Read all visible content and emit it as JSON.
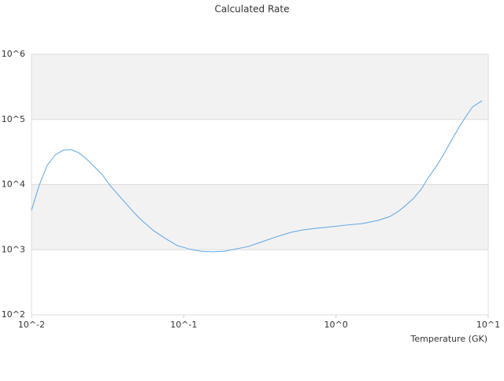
{
  "chart_data": {
    "type": "line",
    "title": "Calculated Rate",
    "x_label": "Temperature (GK)",
    "xscale": "log",
    "yscale": "log",
    "grid": true,
    "color": "#5aa5e8",
    "xlim": [
      0.01,
      10
    ],
    "ylim": [
      100,
      1000000
    ],
    "xticks": [
      {
        "value": 0.01,
        "label": "10^-2"
      },
      {
        "value": 0.1,
        "label": "10^-1"
      },
      {
        "value": 1,
        "label": "10^0"
      },
      {
        "value": 10,
        "label": "10^1"
      }
    ],
    "yticks": [
      {
        "value": 100,
        "label": "10^2"
      },
      {
        "value": 1000,
        "label": "10^3"
      },
      {
        "value": 10000,
        "label": "10^4"
      },
      {
        "value": 100000,
        "label": "10^5"
      },
      {
        "value": 1000000,
        "label": "10^6"
      }
    ],
    "x": [
      0.01,
      0.01127,
      0.01269,
      0.01429,
      0.0161,
      0.01815,
      0.0204,
      0.023,
      0.0259,
      0.0292,
      0.0329,
      0.0394,
      0.0471,
      0.053,
      0.0634,
      0.0757,
      0.0906,
      0.108,
      0.129,
      0.155,
      0.185,
      0.221,
      0.265,
      0.316,
      0.402,
      0.452,
      0.509,
      0.61,
      0.728,
      0.925,
      1.17,
      1.49,
      1.89,
      2.26,
      2.55,
      2.87,
      3.23,
      3.64,
      4.09,
      4.61,
      5.2,
      5.86,
      6.6,
      7.43,
      7.88,
      9.1
    ],
    "values": [
      4050,
      10000,
      19800,
      28400,
      33600,
      34500,
      30900,
      24700,
      18700,
      14200,
      9600,
      5970,
      3720,
      2820,
      1960,
      1490,
      1160,
      1030,
      950,
      930,
      950,
      1030,
      1120,
      1290,
      1570,
      1710,
      1860,
      2020,
      2130,
      2250,
      2390,
      2520,
      2820,
      3240,
      3830,
      4790,
      6150,
      8580,
      13400,
      19800,
      31700,
      52300,
      84000,
      128000,
      155000,
      194000
    ]
  }
}
